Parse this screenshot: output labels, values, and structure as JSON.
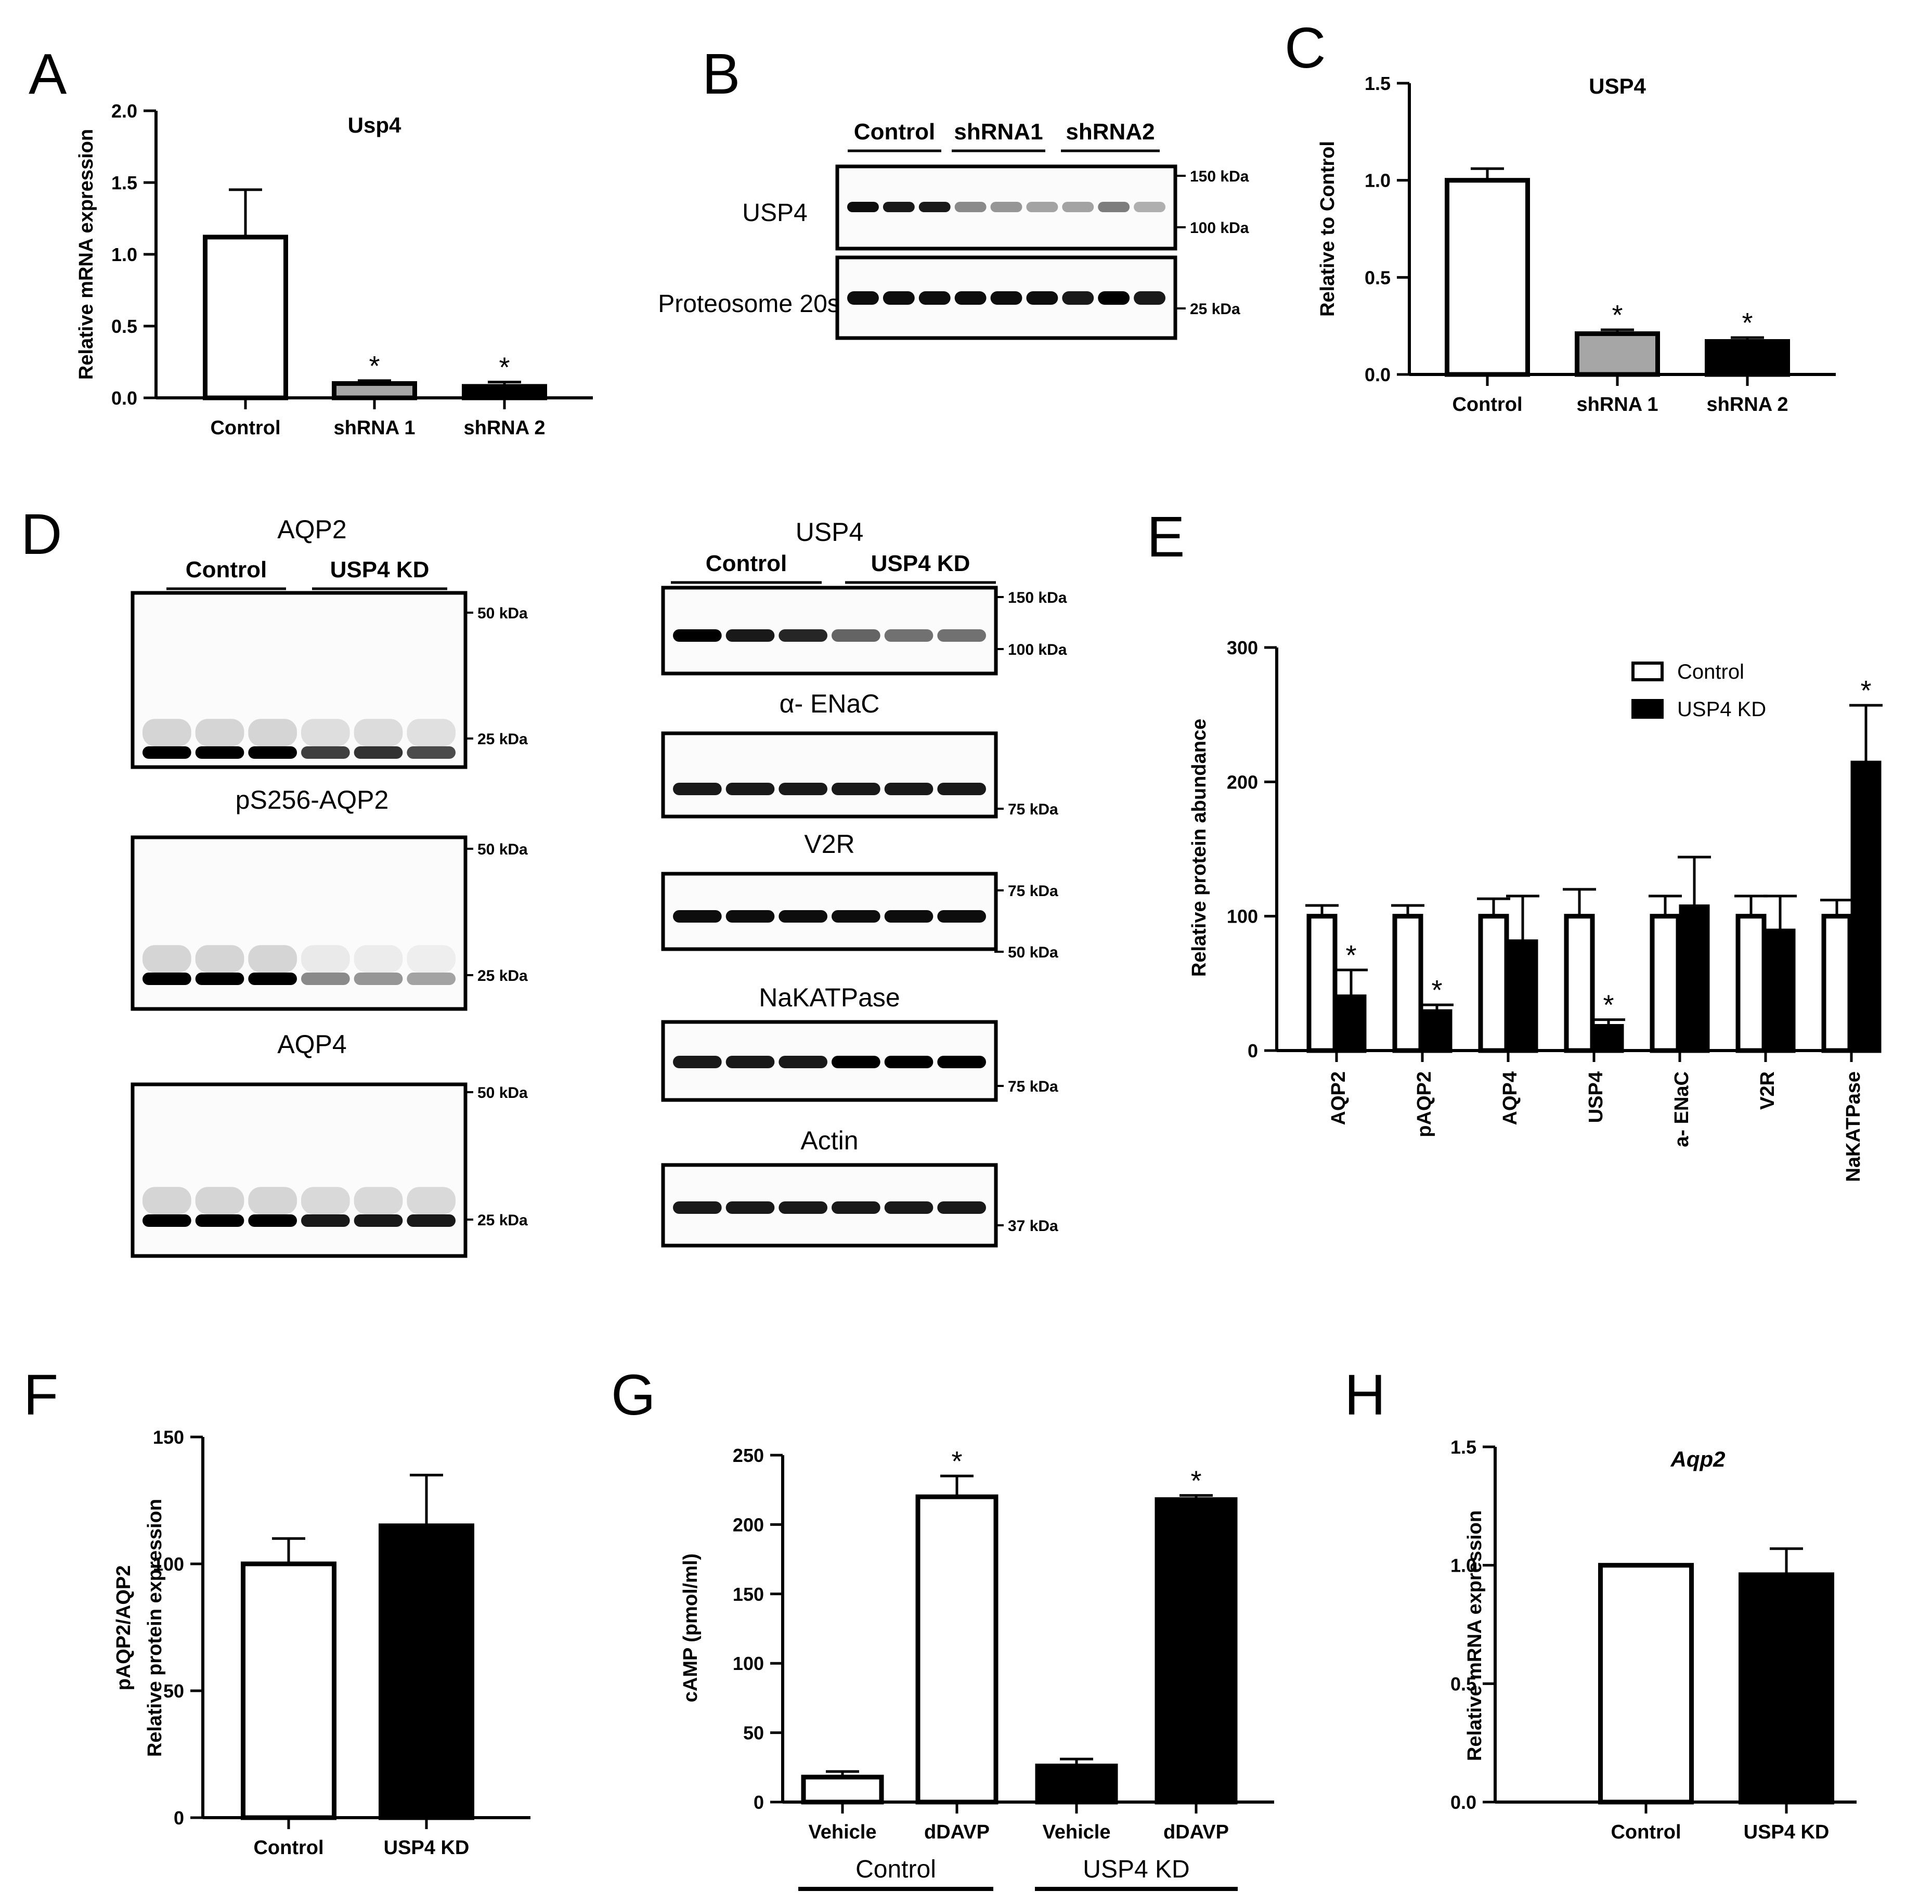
{
  "panels": [
    {
      "id": "A",
      "label": "A",
      "kind": "bar"
    },
    {
      "id": "B",
      "label": "B",
      "kind": "blot"
    },
    {
      "id": "C",
      "label": "C",
      "kind": "bar"
    },
    {
      "id": "D",
      "label": "D",
      "kind": "blot"
    },
    {
      "id": "E",
      "label": "E",
      "kind": "bar"
    },
    {
      "id": "F",
      "label": "F",
      "kind": "bar"
    },
    {
      "id": "G",
      "label": "G",
      "kind": "bar"
    },
    {
      "id": "H",
      "label": "H",
      "kind": "bar"
    }
  ],
  "blots": {
    "B": {
      "groups": [
        "Control",
        "shRNA1",
        "shRNA2"
      ],
      "rows": [
        {
          "label": "USP4",
          "markers": [
            "150 kDa",
            "100 kDa"
          ]
        },
        {
          "label": "Proteosome 20s",
          "markers": [
            "25 kDa"
          ]
        }
      ]
    },
    "D_left": {
      "groups": [
        "Control",
        "USP4 KD"
      ],
      "rows": [
        {
          "label": "AQP2",
          "markers": [
            "50 kDa",
            "25 kDa"
          ]
        },
        {
          "label": "pS256-AQP2",
          "markers": [
            "50 kDa",
            "25 kDa"
          ]
        },
        {
          "label": "AQP4",
          "markers": [
            "50 kDa",
            "25 kDa"
          ]
        }
      ]
    },
    "D_right": {
      "groups": [
        "Control",
        "USP4 KD"
      ],
      "rows": [
        {
          "label": "USP4",
          "markers": [
            "150 kDa",
            "100 kDa"
          ]
        },
        {
          "label": "α- ENaC",
          "markers": [
            "75 kDa"
          ]
        },
        {
          "label": "V2R",
          "markers": [
            "75 kDa",
            "50 kDa"
          ]
        },
        {
          "label": "NaKATPase",
          "markers": [
            "75 kDa"
          ]
        },
        {
          "label": "Actin",
          "markers": [
            "37 kDa"
          ]
        }
      ]
    }
  },
  "chart_data": [
    {
      "panel": "A",
      "type": "bar",
      "title": "Usp4",
      "xlabel": "",
      "ylabel": "Relative mRNA expression",
      "categories": [
        "Control",
        "shRNA 1",
        "shRNA 2"
      ],
      "values": [
        1.12,
        0.1,
        0.08
      ],
      "errors": [
        0.33,
        0.02,
        0.03
      ],
      "significant": [
        false,
        true,
        true
      ],
      "fills": [
        "#ffffff",
        "#a6a6a6",
        "#000000"
      ],
      "ylim": [
        0,
        2.0
      ],
      "yticks": [
        "0.0",
        "0.5",
        "1.0",
        "1.5",
        "2.0"
      ]
    },
    {
      "panel": "C",
      "type": "bar",
      "title": "USP4",
      "xlabel": "",
      "ylabel": "Relative to Control",
      "categories": [
        "Control",
        "shRNA 1",
        "shRNA 2"
      ],
      "values": [
        1.0,
        0.21,
        0.17
      ],
      "errors": [
        0.06,
        0.02,
        0.02
      ],
      "significant": [
        false,
        true,
        true
      ],
      "fills": [
        "#ffffff",
        "#a6a6a6",
        "#000000"
      ],
      "ylim": [
        0,
        1.5
      ],
      "yticks": [
        "0.0",
        "0.5",
        "1.0",
        "1.5"
      ]
    },
    {
      "panel": "E",
      "type": "bar",
      "title": "",
      "xlabel": "",
      "ylabel": "Relative protein abundance",
      "categories": [
        "AQP2",
        "pAQP2",
        "AQP4",
        "USP4",
        "a- ENaC",
        "V2R",
        "NaKATPase"
      ],
      "series": [
        {
          "name": "Control",
          "values": [
            100,
            100,
            100,
            100,
            100,
            100,
            100
          ],
          "errors": [
            8,
            8,
            13,
            20,
            15,
            15,
            12
          ],
          "fill": "#ffffff"
        },
        {
          "name": "USP4 KD",
          "values": [
            40,
            29,
            81,
            18,
            107,
            89,
            214
          ],
          "errors": [
            20,
            5,
            34,
            5,
            37,
            26,
            43
          ],
          "fill": "#000000",
          "significant": [
            true,
            true,
            false,
            true,
            false,
            false,
            true
          ]
        }
      ],
      "legend": "top-right",
      "ylim": [
        0,
        300
      ],
      "yticks": [
        "0",
        "100",
        "200",
        "300"
      ]
    },
    {
      "panel": "F",
      "type": "bar",
      "title": "",
      "xlabel": "",
      "ylabel": [
        "pAQP2/AQP2",
        "Relative protein expression"
      ],
      "categories": [
        "Control",
        "USP4 KD"
      ],
      "values": [
        100,
        115
      ],
      "errors": [
        10,
        20
      ],
      "fills": [
        "#ffffff",
        "#000000"
      ],
      "ylim": [
        0,
        150
      ],
      "yticks": [
        "0",
        "50",
        "100",
        "150"
      ]
    },
    {
      "panel": "G",
      "type": "bar",
      "title": "",
      "xlabel": "",
      "ylabel": "cAMP (pmol/ml)",
      "categories": [
        "Vehicle",
        "dDAVP",
        "Vehicle",
        "dDAVP"
      ],
      "groups": [
        "Control",
        "USP4 KD"
      ],
      "values": [
        18,
        220,
        26,
        218
      ],
      "errors": [
        4,
        15,
        5,
        3
      ],
      "significant": [
        false,
        true,
        false,
        true
      ],
      "fills": [
        "#ffffff",
        "#ffffff",
        "#000000",
        "#000000"
      ],
      "ylim": [
        0,
        250
      ],
      "yticks": [
        "0",
        "50",
        "100",
        "150",
        "200",
        "250"
      ]
    },
    {
      "panel": "H",
      "type": "bar",
      "title": "Aqp2",
      "xlabel": "",
      "ylabel": "Relative mRNA expression",
      "categories": [
        "Control",
        "USP4 KD"
      ],
      "values": [
        1.0,
        0.96
      ],
      "errors": [
        0,
        0.11
      ],
      "fills": [
        "#ffffff",
        "#000000"
      ],
      "ylim": [
        0,
        1.5
      ],
      "yticks": [
        "0.0",
        "0.5",
        "1.0",
        "1.5"
      ]
    }
  ],
  "sig_marker": "*"
}
